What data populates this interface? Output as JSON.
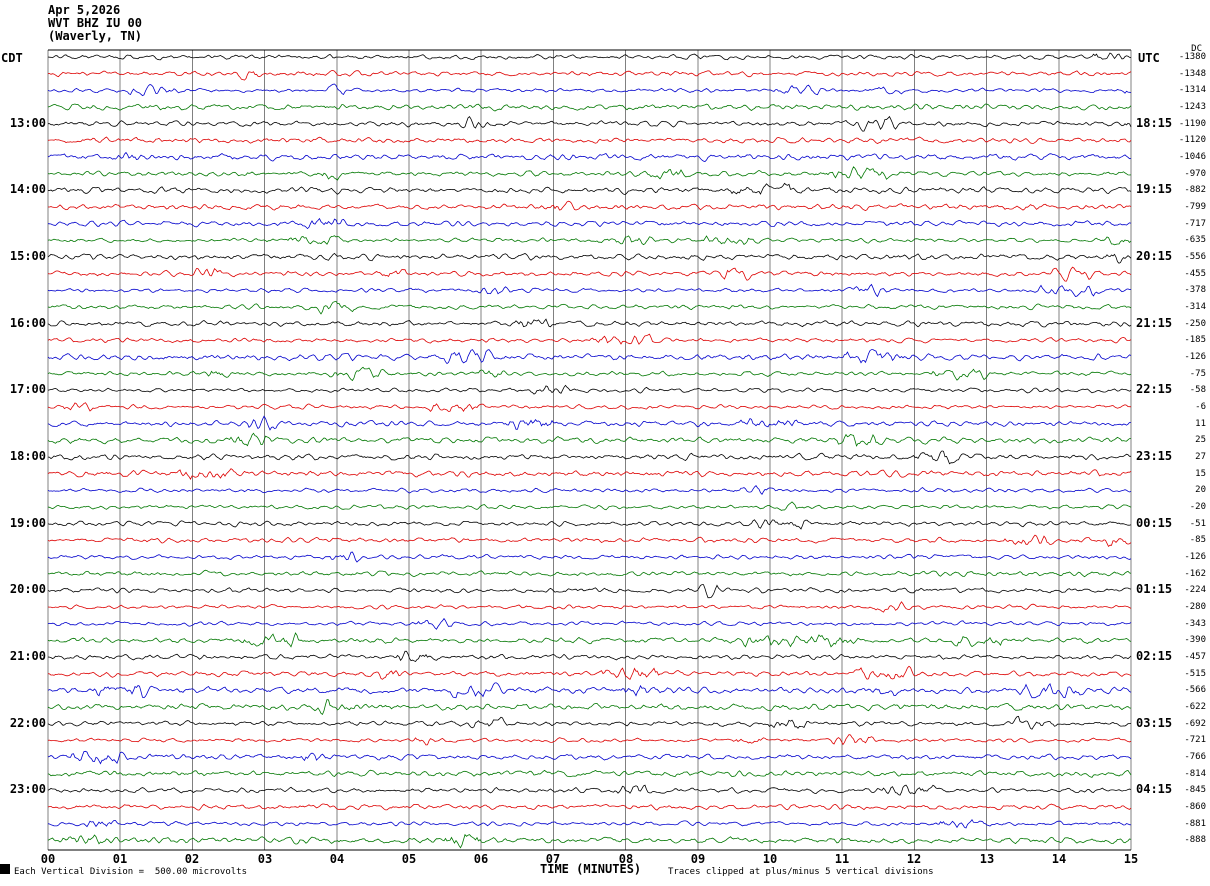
{
  "header": {
    "date": "Apr 5,2026",
    "station": "WVT BHZ IU 00",
    "location": "(Waverly, TN)"
  },
  "axis": {
    "left_tz": "CDT",
    "right_tz": "UTC",
    "dc_label": "DC",
    "xlabel": "TIME (MINUTES)",
    "x_ticks": [
      "00",
      "01",
      "02",
      "03",
      "04",
      "05",
      "06",
      "07",
      "08",
      "09",
      "10",
      "11",
      "12",
      "13",
      "14",
      "15"
    ]
  },
  "footer": {
    "left": "Each Vertical Division =  500.00 microvolts",
    "right": "Traces clipped at plus/minus 5 vertical divisions"
  },
  "colors": {
    "trace_cycle": [
      "#000000",
      "#dd0000",
      "#0000cc",
      "#007700"
    ],
    "grid": "#808080",
    "axis_line": "#000000",
    "background": "#ffffff"
  },
  "chart_data": {
    "type": "line",
    "title": "WVT BHZ IU 00 helicorder - Apr 5,2026 - (Waverly, TN)",
    "xlabel": "TIME (MINUTES)",
    "x_range_minutes": [
      0,
      15
    ],
    "x_tick_interval_minutes": 1,
    "num_rows": 48,
    "minutes_per_row": 15,
    "first_row_start_cdt": "12:00",
    "last_row_start_cdt": "23:45",
    "utc_offset_hours": -5,
    "row_color_cycle": [
      "black",
      "red",
      "blue",
      "green"
    ],
    "vertical_division_microvolts": 500.0,
    "clip_limit_divisions": 5,
    "hour_labels": [
      {
        "row": 4,
        "cdt": "13:00",
        "utc": "18:15"
      },
      {
        "row": 8,
        "cdt": "14:00",
        "utc": "19:15"
      },
      {
        "row": 12,
        "cdt": "15:00",
        "utc": "20:15"
      },
      {
        "row": 16,
        "cdt": "16:00",
        "utc": "21:15"
      },
      {
        "row": 20,
        "cdt": "17:00",
        "utc": "22:15"
      },
      {
        "row": 24,
        "cdt": "18:00",
        "utc": "23:15"
      },
      {
        "row": 28,
        "cdt": "19:00",
        "utc": "00:15"
      },
      {
        "row": 32,
        "cdt": "20:00",
        "utc": "01:15"
      },
      {
        "row": 36,
        "cdt": "21:00",
        "utc": "02:15"
      },
      {
        "row": 40,
        "cdt": "22:00",
        "utc": "03:15"
      },
      {
        "row": 44,
        "cdt": "23:00",
        "utc": "04:15"
      }
    ],
    "dc_offset_per_row": [
      -1380,
      -1348,
      -1314,
      -1243,
      -1190,
      -1120,
      -1046,
      -970,
      -882,
      -799,
      -717,
      -635,
      -556,
      -455,
      -378,
      -314,
      -250,
      -185,
      -126,
      -75,
      -58,
      -6,
      11,
      25,
      27,
      15,
      20,
      -20,
      -51,
      -85,
      -126,
      -162,
      -224,
      -280,
      -343,
      -390,
      -457,
      -515,
      -566,
      -622,
      -692,
      -721,
      -766,
      -814,
      -845,
      -860,
      -881,
      -888
    ]
  }
}
